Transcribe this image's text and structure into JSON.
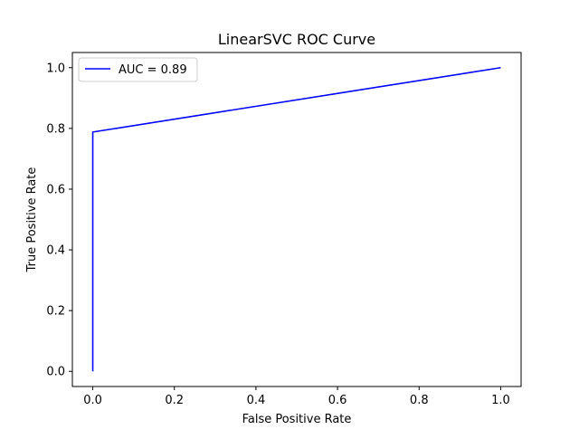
{
  "chart_data": {
    "type": "line",
    "title": "LinearSVC ROC Curve",
    "xlabel": "False Positive Rate",
    "ylabel": "True Positive Rate",
    "xlim": [
      -0.05,
      1.05
    ],
    "ylim": [
      -0.05,
      1.05
    ],
    "xticks": [
      0.0,
      0.2,
      0.4,
      0.6,
      0.8,
      1.0
    ],
    "yticks": [
      0.0,
      0.2,
      0.4,
      0.6,
      0.8,
      1.0
    ],
    "xtick_labels": [
      "0.0",
      "0.2",
      "0.4",
      "0.6",
      "0.8",
      "1.0"
    ],
    "ytick_labels": [
      "0.0",
      "0.2",
      "0.4",
      "0.6",
      "0.8",
      "1.0"
    ],
    "grid": false,
    "legend_position": "upper-left",
    "series": [
      {
        "name": "AUC = 0.89",
        "color": "#0000ff",
        "x": [
          0.0,
          0.0,
          1.0
        ],
        "y": [
          0.0,
          0.788,
          1.0
        ]
      }
    ]
  }
}
